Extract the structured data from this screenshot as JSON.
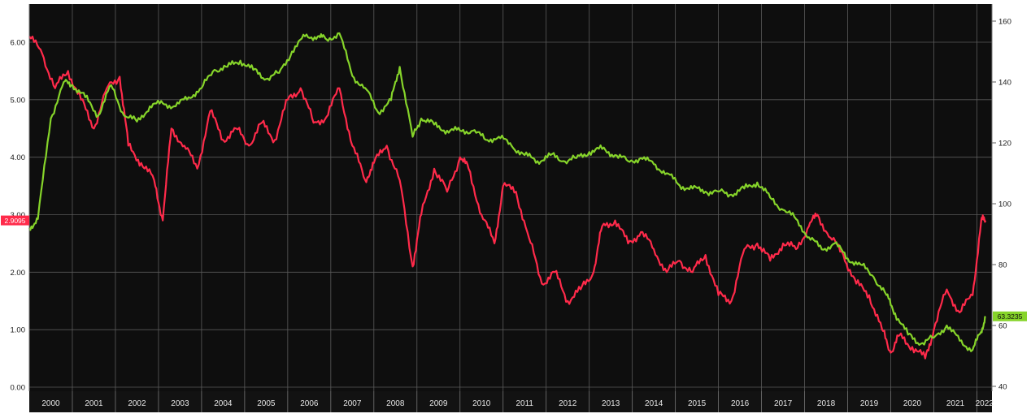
{
  "chart_data": {
    "type": "line",
    "title": "",
    "xlabel": "",
    "x_ticks": [
      "2000",
      "2001",
      "2002",
      "2003",
      "2004",
      "2005",
      "2006",
      "2007",
      "2008",
      "2009",
      "2010",
      "2011",
      "2012",
      "2013",
      "2014",
      "2015",
      "2016",
      "2017",
      "2018",
      "2019",
      "2020",
      "2021",
      "2022"
    ],
    "left_axis": {
      "ylim": [
        0,
        6.5
      ],
      "ticks": [
        "0.00",
        "1.00",
        "2.00",
        "3.00",
        "4.00",
        "5.00",
        "6.00"
      ]
    },
    "right_axis": {
      "ylim": [
        40,
        160
      ],
      "ticks": [
        "40",
        "60",
        "80",
        "100",
        "120",
        "140",
        "160"
      ]
    },
    "grid": true,
    "series": [
      {
        "axis": "left",
        "color": "#ff2a4a",
        "last_value_label": "2.9095",
        "x": [
          2000.0,
          2000.3,
          2000.6,
          2000.9,
          2001.2,
          2001.5,
          2001.8,
          2002.1,
          2002.3,
          2002.6,
          2002.9,
          2003.1,
          2003.3,
          2003.6,
          2003.9,
          2004.2,
          2004.5,
          2004.8,
          2005.1,
          2005.4,
          2005.7,
          2006.0,
          2006.3,
          2006.6,
          2006.9,
          2007.2,
          2007.5,
          2007.8,
          2008.0,
          2008.3,
          2008.6,
          2008.9,
          2009.1,
          2009.4,
          2009.7,
          2010.0,
          2010.2,
          2010.5,
          2010.8,
          2011.0,
          2011.3,
          2011.6,
          2011.9,
          2012.2,
          2012.5,
          2012.8,
          2013.1,
          2013.3,
          2013.6,
          2013.9,
          2014.2,
          2014.5,
          2014.8,
          2015.1,
          2015.4,
          2015.7,
          2016.0,
          2016.3,
          2016.6,
          2016.9,
          2017.2,
          2017.5,
          2017.8,
          2018.1,
          2018.3,
          2018.6,
          2018.9,
          2019.2,
          2019.5,
          2019.8,
          2020.0,
          2020.2,
          2020.5,
          2020.8,
          2021.0,
          2021.3,
          2021.6,
          2021.9,
          2022.1,
          2022.2
        ],
        "values": [
          6.1,
          5.8,
          5.2,
          5.5,
          5.0,
          4.5,
          5.2,
          5.4,
          4.2,
          3.9,
          3.6,
          2.9,
          4.5,
          4.2,
          3.8,
          4.8,
          4.3,
          4.5,
          4.2,
          4.6,
          4.3,
          5.0,
          5.2,
          4.6,
          4.7,
          5.2,
          4.2,
          3.6,
          3.9,
          4.2,
          3.6,
          2.1,
          3.0,
          3.8,
          3.4,
          4.0,
          3.8,
          3.0,
          2.5,
          3.5,
          3.4,
          2.6,
          1.8,
          2.0,
          1.5,
          1.7,
          2.0,
          2.8,
          2.9,
          2.5,
          2.7,
          2.4,
          2.0,
          2.2,
          2.0,
          2.3,
          1.6,
          1.5,
          2.4,
          2.5,
          2.2,
          2.5,
          2.4,
          2.8,
          3.0,
          2.6,
          2.3,
          1.8,
          1.6,
          1.0,
          0.6,
          0.9,
          0.7,
          0.5,
          1.0,
          1.7,
          1.3,
          1.6,
          2.9,
          2.9
        ]
      },
      {
        "axis": "right",
        "color": "#86d42a",
        "last_value_label": "63.3235",
        "x": [
          2000.0,
          2000.2,
          2000.5,
          2000.8,
          2001.0,
          2001.3,
          2001.6,
          2001.9,
          2002.2,
          2002.5,
          2002.8,
          2003.1,
          2003.4,
          2003.7,
          2004.0,
          2004.3,
          2004.6,
          2004.9,
          2005.2,
          2005.5,
          2005.8,
          2006.1,
          2006.4,
          2006.7,
          2006.9,
          2007.2,
          2007.5,
          2007.8,
          2008.1,
          2008.4,
          2008.6,
          2008.9,
          2009.1,
          2009.4,
          2009.7,
          2010.0,
          2010.3,
          2010.6,
          2010.9,
          2011.2,
          2011.5,
          2011.8,
          2012.1,
          2012.4,
          2012.7,
          2013.0,
          2013.3,
          2013.6,
          2013.9,
          2014.2,
          2014.5,
          2014.8,
          2015.1,
          2015.4,
          2015.7,
          2016.0,
          2016.3,
          2016.6,
          2016.9,
          2017.2,
          2017.5,
          2017.8,
          2018.1,
          2018.4,
          2018.7,
          2019.0,
          2019.3,
          2019.6,
          2019.9,
          2020.1,
          2020.4,
          2020.7,
          2021.0,
          2021.3,
          2021.6,
          2021.9,
          2022.1,
          2022.2
        ],
        "values": [
          92,
          95,
          128,
          140,
          139,
          135,
          129,
          139,
          129,
          127,
          132,
          133,
          132,
          135,
          138,
          144,
          145,
          147,
          144,
          141,
          143,
          150,
          155,
          155,
          154,
          156,
          142,
          138,
          130,
          134,
          145,
          122,
          128,
          126,
          124,
          124,
          124,
          121,
          122,
          119,
          116,
          114,
          116,
          114,
          115,
          117,
          118,
          116,
          114,
          115,
          113,
          110,
          106,
          105,
          104,
          104,
          103,
          105,
          107,
          102,
          98,
          95,
          89,
          85,
          87,
          82,
          80,
          76,
          70,
          64,
          57,
          54,
          56,
          60,
          55,
          52,
          58,
          63
        ]
      }
    ]
  }
}
